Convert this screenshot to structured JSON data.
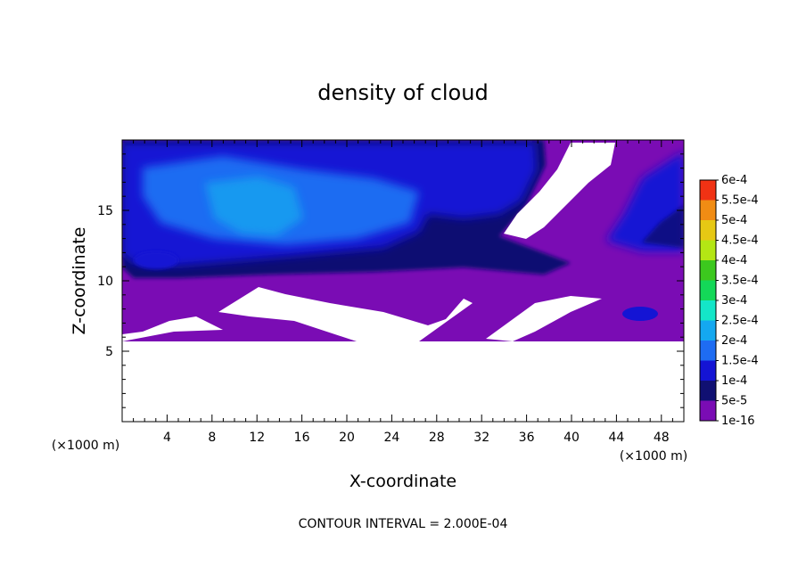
{
  "chart_data": {
    "type": "heatmap",
    "title": "density of cloud",
    "xlabel": "X-coordinate",
    "ylabel": "Z-coordinate",
    "x_unit_left": "(×1000 m)",
    "x_unit_right": "(×1000 m)",
    "xlim": [
      0,
      50
    ],
    "ylim": [
      0,
      20
    ],
    "x_ticks": [
      4,
      8,
      12,
      16,
      20,
      24,
      28,
      32,
      36,
      40,
      44,
      48
    ],
    "y_ticks": [
      5,
      10,
      15
    ],
    "footer": "CONTOUR INTERVAL = 2.000E-04",
    "colorbar": {
      "labels": [
        "1e-16",
        "5e-5",
        "1e-4",
        "1.5e-4",
        "2e-4",
        "2.5e-4",
        "3e-4",
        "3.5e-4",
        "4e-4",
        "4.5e-4",
        "5e-4",
        "5.5e-4",
        "6e-4"
      ],
      "colors": [
        "#7a0cb4",
        "#101072",
        "#1414d4",
        "#1e6cf2",
        "#14a8f0",
        "#14e6c8",
        "#14d858",
        "#3cc81e",
        "#b4e614",
        "#e6c814",
        "#f08c14",
        "#f03214",
        "#f07878"
      ]
    },
    "regions": {
      "cloud_free": {
        "color": "#ffffff",
        "z_below": 6
      },
      "cloud_top": 19.5,
      "dense_layer_z": [
        10.5,
        19.5
      ],
      "max_core": {
        "x": 14,
        "z": 14.5,
        "value": "1.5e-4"
      }
    }
  }
}
